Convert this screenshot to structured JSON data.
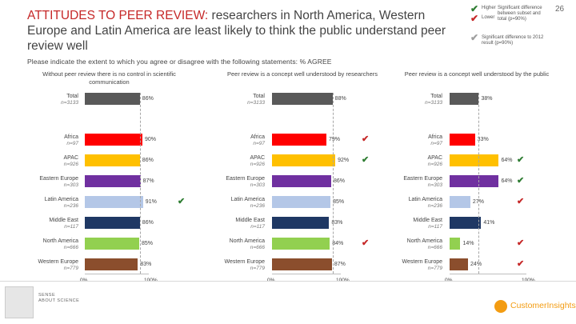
{
  "page": {
    "title_highlight": "ATTITUDES TO PEER REVIEW:",
    "title_rest": " researchers in North America, Western Europe and Latin America are least likely to think the public understand peer review well",
    "page_number": "26",
    "question": "Please indicate the extent to which you agree or disagree with the following statements: % AGREE"
  },
  "legend": {
    "higher_label": "Higher",
    "lower_label": "Lower",
    "sig_total_line1": "Significant difference",
    "sig_total_line2": "between subset and",
    "sig_total_line3": "total (p=90%)",
    "sig_2012_line1": "Significant difference to 2012",
    "sig_2012_line2": "result (p=90%)"
  },
  "colors": {
    "higher": "#2e7d32",
    "lower": "#c62828",
    "vs2012": "#9e9e9e",
    "title_highlight": "#c62828"
  },
  "rows": [
    {
      "label": "Total",
      "n": "n=3133",
      "color": "#595959"
    },
    {
      "label": "Africa",
      "n": "n=97",
      "color": "#ff0000"
    },
    {
      "label": "APAC",
      "n": "n=926",
      "color": "#ffc000"
    },
    {
      "label": "Eastern Europe",
      "n": "n=303",
      "color": "#7030a0"
    },
    {
      "label": "Latin America",
      "n": "n=236",
      "color": "#b4c7e7"
    },
    {
      "label": "Middle East",
      "n": "n=117",
      "color": "#1f3864"
    },
    {
      "label": "North America",
      "n": "n=666",
      "color": "#92d050"
    },
    {
      "label": "Western Europe",
      "n": "n=779",
      "color": "#8b4e2d"
    }
  ],
  "chart_data": [
    {
      "type": "bar",
      "title": "Without peer review there is no control in scientific communication",
      "categories": [
        "Total",
        "Africa",
        "APAC",
        "Eastern Europe",
        "Latin America",
        "Middle East",
        "North America",
        "Western Europe"
      ],
      "values": [
        86,
        90,
        86,
        87,
        91,
        86,
        85,
        83
      ],
      "labels": [
        "86%",
        "90%",
        "86%",
        "87%",
        "91%",
        "86%",
        "85%",
        "83%"
      ],
      "sig": [
        null,
        null,
        null,
        null,
        "higher",
        null,
        null,
        null
      ],
      "xlim": [
        0,
        100
      ],
      "ticks": [
        "0%",
        "100%"
      ]
    },
    {
      "type": "bar",
      "title": "Peer review is a concept well understood by researchers",
      "categories": [
        "Total",
        "Africa",
        "APAC",
        "Eastern Europe",
        "Latin America",
        "Middle East",
        "North America",
        "Western Europe"
      ],
      "values": [
        88,
        79,
        92,
        86,
        85,
        83,
        84,
        87
      ],
      "labels": [
        "88%",
        "79%",
        "92%",
        "86%",
        "85%",
        "83%",
        "84%",
        "87%"
      ],
      "sig": [
        null,
        "lower",
        "higher",
        null,
        null,
        null,
        "lower",
        null
      ],
      "xlim": [
        0,
        100
      ],
      "ticks": [
        "0%",
        "100%"
      ]
    },
    {
      "type": "bar",
      "title": "Peer review is a concept well understood by the public",
      "categories": [
        "Total",
        "Africa",
        "APAC",
        "Eastern Europe",
        "Latin America",
        "Middle East",
        "North America",
        "Western Europe"
      ],
      "values": [
        38,
        33,
        64,
        64,
        27,
        41,
        14,
        24
      ],
      "labels": [
        "38%",
        "33%",
        "64%",
        "64%",
        "27%",
        "41%",
        "14%",
        "24%"
      ],
      "sig": [
        null,
        null,
        "higher",
        "higher",
        "lower",
        null,
        "lower",
        "lower"
      ],
      "xlim": [
        0,
        100
      ],
      "ticks": [
        "0%",
        "100%"
      ]
    }
  ],
  "footer": {
    "sense_line1": "SENSE",
    "sense_line2": "ABOUT SCIENCE",
    "brand": "CustomerInsights"
  }
}
